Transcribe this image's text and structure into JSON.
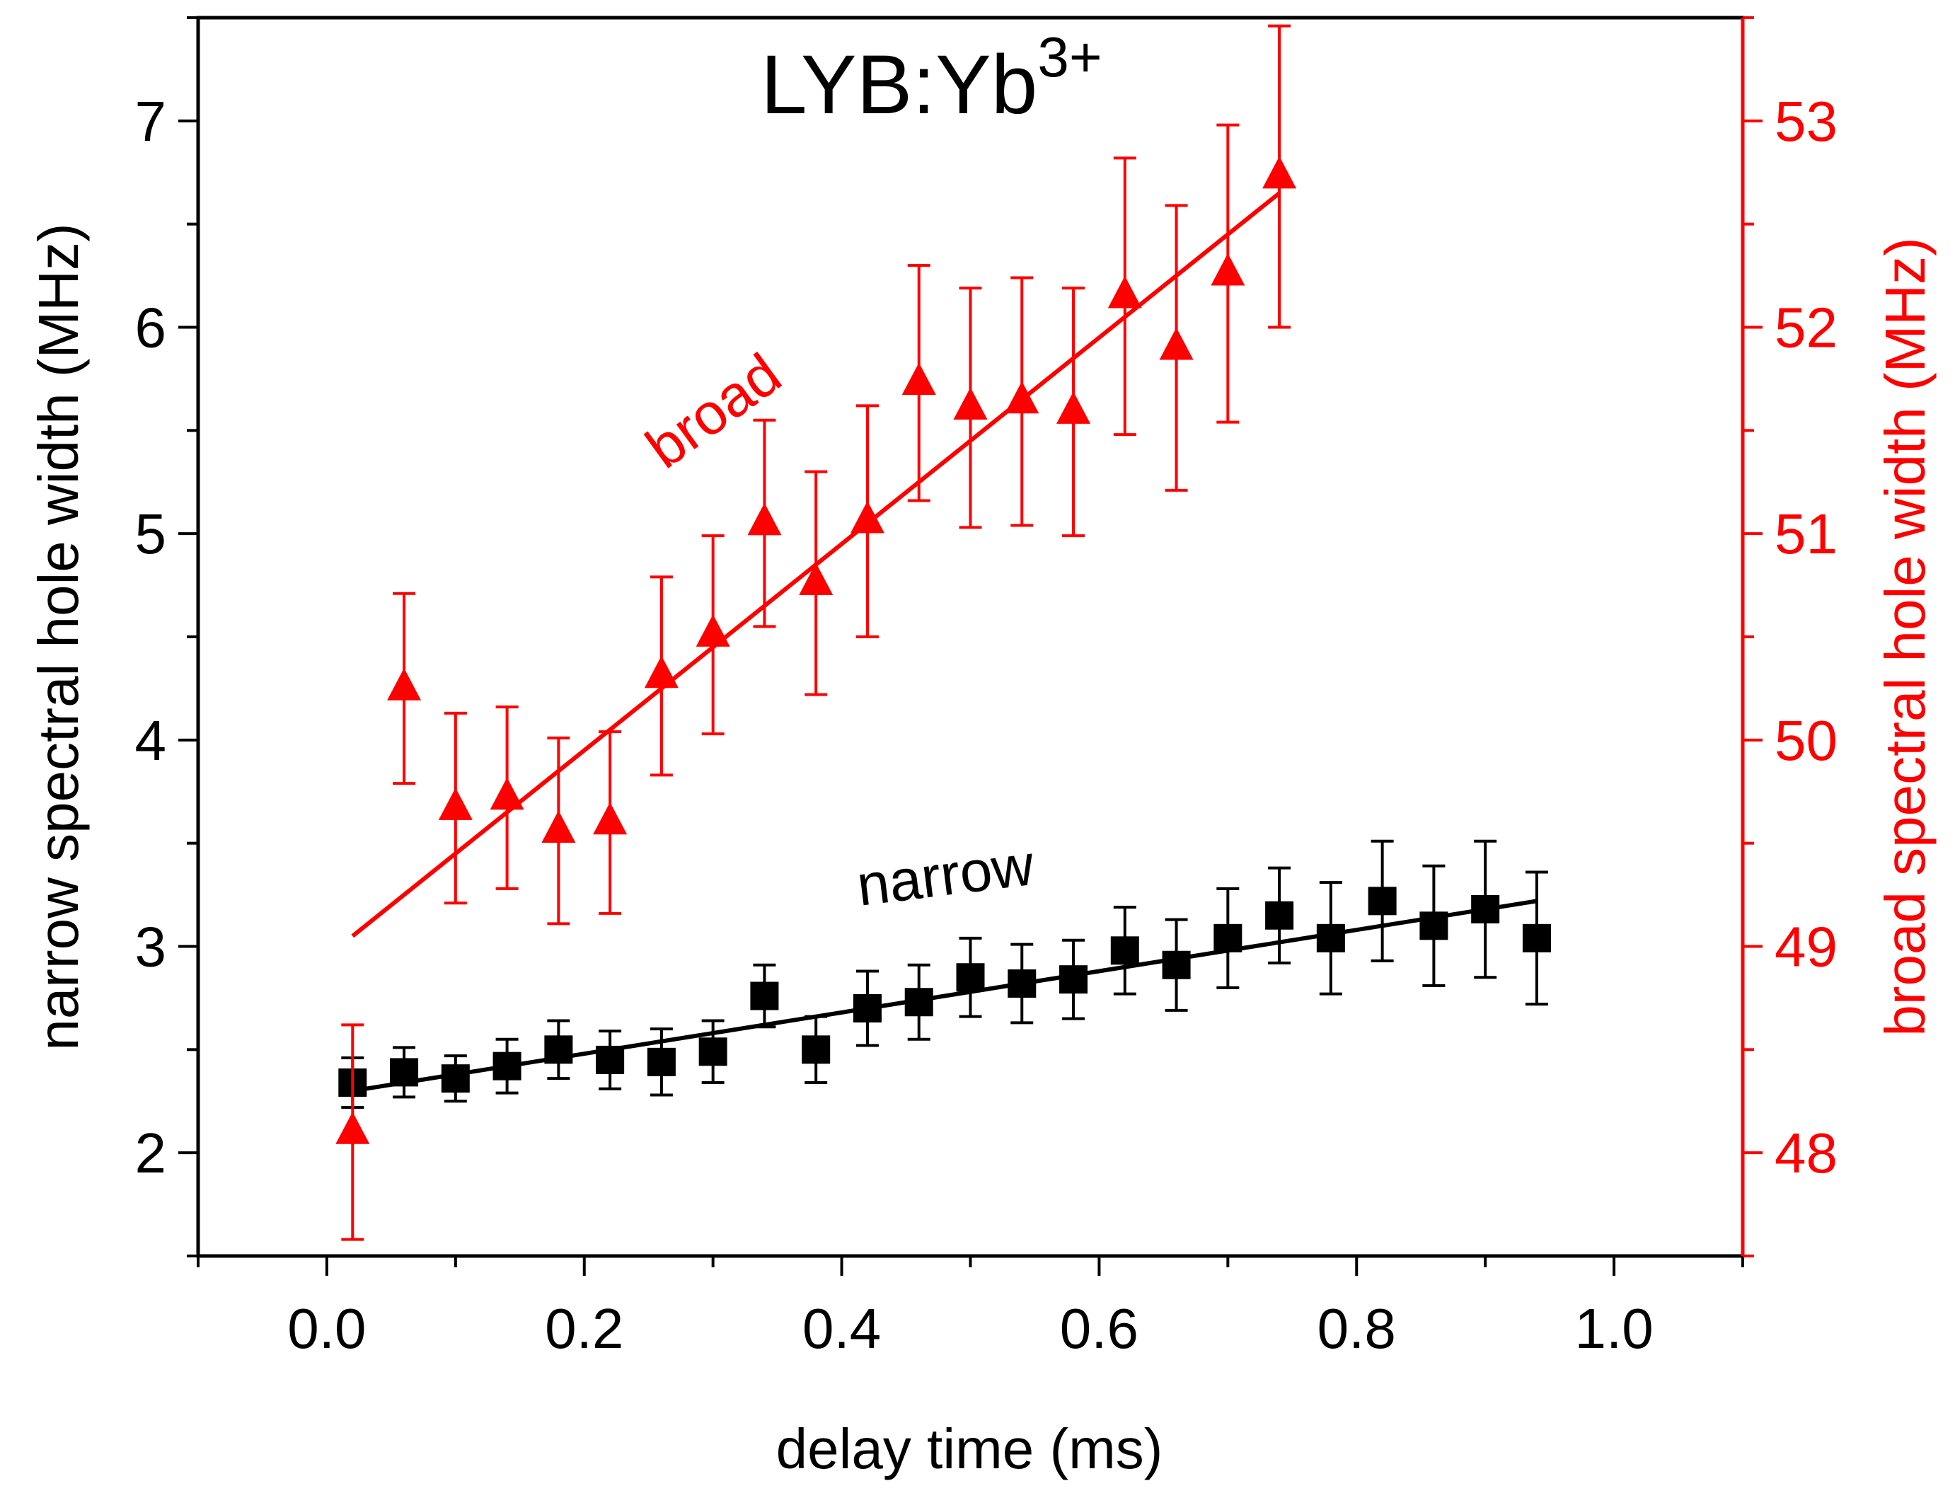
{
  "chart_data": {
    "type": "scatter",
    "title": "LYB:Yb",
    "title_superscript": "3+",
    "xlabel": "delay time (ms)",
    "ylabel_left": "narrow spectral hole width (MHz)",
    "ylabel_right": "broad spectral hole width (MHz)",
    "xlim": [
      -0.1,
      1.1
    ],
    "ylim_left": [
      1.5,
      7.5
    ],
    "ylim_right": [
      47.5,
      53.5
    ],
    "x_ticks": [
      "0.0",
      "0.2",
      "0.4",
      "0.6",
      "0.8",
      "1.0"
    ],
    "y_ticks_left": [
      "2",
      "3",
      "4",
      "5",
      "6",
      "7"
    ],
    "y_ticks_right": [
      "48",
      "49",
      "50",
      "51",
      "52",
      "53"
    ],
    "colors": {
      "narrow": "#000000",
      "broad": "#ff0000"
    },
    "annotations": {
      "narrow": "narrow",
      "broad": "broad"
    },
    "series": [
      {
        "name": "narrow",
        "axis": "left",
        "marker": "square",
        "x": [
          0.02,
          0.06,
          0.1,
          0.14,
          0.18,
          0.22,
          0.26,
          0.3,
          0.34,
          0.38,
          0.42,
          0.46,
          0.5,
          0.54,
          0.58,
          0.62,
          0.66,
          0.7,
          0.74,
          0.78,
          0.82,
          0.86,
          0.9,
          0.94
        ],
        "y": [
          2.34,
          2.39,
          2.36,
          2.42,
          2.5,
          2.45,
          2.44,
          2.49,
          2.76,
          2.5,
          2.7,
          2.73,
          2.85,
          2.82,
          2.84,
          2.98,
          2.91,
          3.04,
          3.15,
          3.04,
          3.22,
          3.1,
          3.18,
          3.04
        ],
        "err": [
          0.12,
          0.12,
          0.11,
          0.13,
          0.14,
          0.14,
          0.16,
          0.15,
          0.15,
          0.16,
          0.18,
          0.18,
          0.19,
          0.19,
          0.19,
          0.21,
          0.22,
          0.24,
          0.23,
          0.27,
          0.29,
          0.29,
          0.33,
          0.32
        ],
        "fit": {
          "x": [
            0.02,
            0.94
          ],
          "y": [
            2.3,
            3.22
          ]
        }
      },
      {
        "name": "broad",
        "axis": "right",
        "marker": "triangle",
        "x": [
          0.02,
          0.06,
          0.1,
          0.14,
          0.18,
          0.22,
          0.26,
          0.3,
          0.34,
          0.38,
          0.42,
          0.46,
          0.5,
          0.54,
          0.58,
          0.62,
          0.66,
          0.7,
          0.74
        ],
        "y": [
          48.1,
          50.25,
          49.67,
          49.72,
          49.56,
          49.6,
          50.31,
          50.51,
          51.05,
          50.76,
          51.06,
          51.73,
          51.61,
          51.64,
          51.59,
          52.15,
          51.9,
          52.26,
          52.73
        ],
        "err": [
          0.52,
          0.46,
          0.46,
          0.44,
          0.45,
          0.44,
          0.48,
          0.48,
          0.5,
          0.54,
          0.56,
          0.57,
          0.58,
          0.6,
          0.6,
          0.67,
          0.69,
          0.72,
          0.73
        ],
        "fit": {
          "x": [
            0.02,
            0.74
          ],
          "y": [
            49.05,
            52.65
          ]
        }
      }
    ]
  }
}
